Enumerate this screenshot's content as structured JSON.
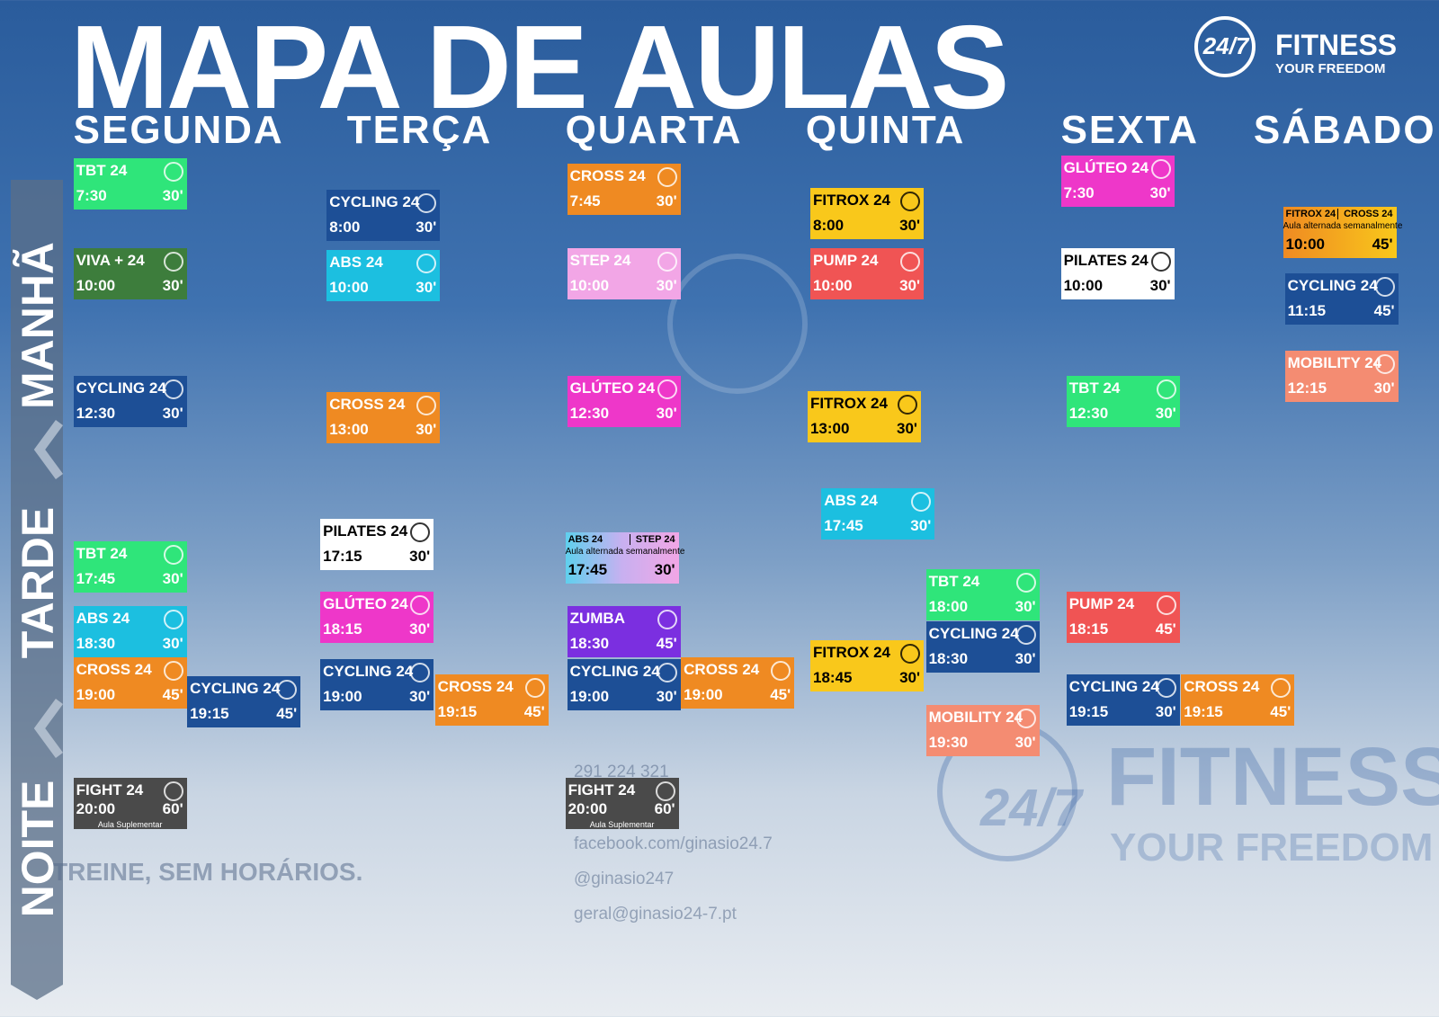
{
  "header": {
    "title": "MAPA DE AULAS",
    "logo_number": "24/7",
    "logo_brand": "FITNESS",
    "logo_tagline": "YOUR FREEDOM"
  },
  "days": [
    "SEGUNDA",
    "TERÇA",
    "QUARTA",
    "QUINTA",
    "SEXTA",
    "SÁBADO"
  ],
  "periods": [
    "MANHÃ",
    "TARDE",
    "NOITE"
  ],
  "classes": [
    {
      "name": "TBT 24",
      "time": "7:30",
      "duration": "30'"
    },
    {
      "name": "VIVA + 24",
      "time": "10:00",
      "duration": "30'"
    },
    {
      "name": "CYCLING 24",
      "time": "12:30",
      "duration": "30'"
    },
    {
      "name": "TBT 24",
      "time": "17:45",
      "duration": "30'"
    },
    {
      "name": "ABS 24",
      "time": "18:30",
      "duration": "30'"
    },
    {
      "name": "CROSS 24",
      "time": "19:00",
      "duration": "45'"
    },
    {
      "name": "CYCLING 24",
      "time": "19:15",
      "duration": "45'"
    },
    {
      "name": "FIGHT 24",
      "time": "20:00",
      "duration": "60'",
      "note": "Aula Suplementar"
    },
    {
      "name": "CYCLING 24",
      "time": "8:00",
      "duration": "30'"
    },
    {
      "name": "ABS 24",
      "time": "10:00",
      "duration": "30'"
    },
    {
      "name": "CROSS 24",
      "time": "13:00",
      "duration": "30'"
    },
    {
      "name": "PILATES 24",
      "time": "17:15",
      "duration": "30'"
    },
    {
      "name": "GLÚTEO 24",
      "time": "18:15",
      "duration": "30'"
    },
    {
      "name": "CYCLING 24",
      "time": "19:00",
      "duration": "30'"
    },
    {
      "name": "CROSS 24",
      "time": "19:15",
      "duration": "45'"
    },
    {
      "name": "CROSS 24",
      "time": "7:45",
      "duration": "30'"
    },
    {
      "name": "STEP 24",
      "time": "10:00",
      "duration": "30'"
    },
    {
      "name": "GLÚTEO 24",
      "time": "12:30",
      "duration": "30'"
    },
    {
      "name": "ABS 24",
      "alt_name": "STEP 24",
      "time": "17:45",
      "duration": "30'",
      "note": "Aula alternada semanalmente"
    },
    {
      "name": "ZUMBA",
      "time": "18:30",
      "duration": "45'"
    },
    {
      "name": "CYCLING 24",
      "time": "19:00",
      "duration": "30'"
    },
    {
      "name": "CROSS 24",
      "time": "19:00",
      "duration": "45'"
    },
    {
      "name": "FIGHT 24",
      "time": "20:00",
      "duration": "60'",
      "note": "Aula Suplementar"
    },
    {
      "name": "FITROX 24",
      "time": "8:00",
      "duration": "30'"
    },
    {
      "name": "PUMP 24",
      "time": "10:00",
      "duration": "30'"
    },
    {
      "name": "FITROX 24",
      "time": "13:00",
      "duration": "30'"
    },
    {
      "name": "ABS 24",
      "time": "17:45",
      "duration": "30'"
    },
    {
      "name": "TBT 24",
      "time": "18:00",
      "duration": "30'"
    },
    {
      "name": "CYCLING 24",
      "time": "18:30",
      "duration": "30'"
    },
    {
      "name": "FITROX 24",
      "time": "18:45",
      "duration": "30'"
    },
    {
      "name": "MOBILITY 24",
      "time": "19:30",
      "duration": "30'"
    },
    {
      "name": "GLÚTEO 24",
      "time": "7:30",
      "duration": "30'"
    },
    {
      "name": "PILATES 24",
      "time": "10:00",
      "duration": "30'"
    },
    {
      "name": "TBT 24",
      "time": "12:30",
      "duration": "30'"
    },
    {
      "name": "PUMP 24",
      "time": "18:15",
      "duration": "45'"
    },
    {
      "name": "CYCLING 24",
      "time": "19:15",
      "duration": "30'"
    },
    {
      "name": "CROSS 24",
      "time": "19:15",
      "duration": "45'"
    },
    {
      "name": "FITROX 24",
      "alt_name": "CROSS 24",
      "time": "10:00",
      "duration": "45'",
      "note": "Aula alternada semanalmente"
    },
    {
      "name": "CYCLING 24",
      "time": "11:15",
      "duration": "45'"
    },
    {
      "name": "MOBILITY 24",
      "time": "12:15",
      "duration": "30'"
    }
  ],
  "footer": {
    "slogan": "TREINE, SEM HORÁRIOS.",
    "phone": "291 224 321",
    "facebook": "facebook.com/ginasio24.7",
    "instagram": "@ginasio247",
    "email": "geral@ginasio24-7.pt",
    "watermark_brand": "FITNESS",
    "watermark_tagline": "YOUR FREEDOM"
  }
}
